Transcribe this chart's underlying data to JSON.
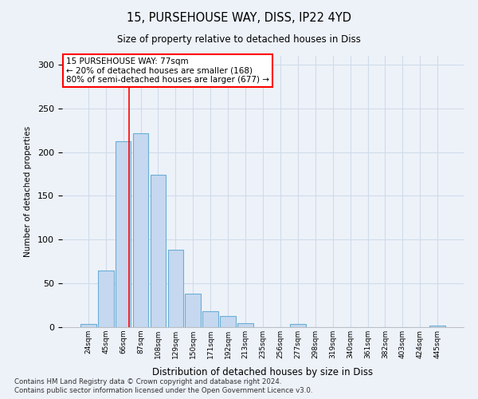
{
  "title1": "15, PURSEHOUSE WAY, DISS, IP22 4YD",
  "title2": "Size of property relative to detached houses in Diss",
  "xlabel": "Distribution of detached houses by size in Diss",
  "ylabel": "Number of detached properties",
  "categories": [
    "24sqm",
    "45sqm",
    "66sqm",
    "87sqm",
    "108sqm",
    "129sqm",
    "150sqm",
    "171sqm",
    "192sqm",
    "213sqm",
    "235sqm",
    "256sqm",
    "277sqm",
    "298sqm",
    "319sqm",
    "340sqm",
    "361sqm",
    "382sqm",
    "403sqm",
    "424sqm",
    "445sqm"
  ],
  "values": [
    4,
    65,
    212,
    222,
    174,
    88,
    38,
    18,
    13,
    5,
    0,
    0,
    4,
    0,
    0,
    0,
    0,
    0,
    0,
    0,
    2
  ],
  "bar_color": "#c5d8ef",
  "bar_edge_color": "#6aaed6",
  "grid_color": "#d0dcea",
  "vline_x": 2.35,
  "vline_color": "red",
  "annotation_text": "15 PURSEHOUSE WAY: 77sqm\n← 20% of detached houses are smaller (168)\n80% of semi-detached houses are larger (677) →",
  "annotation_box_color": "white",
  "annotation_box_edge": "red",
  "footnote1": "Contains HM Land Registry data © Crown copyright and database right 2024.",
  "footnote2": "Contains public sector information licensed under the Open Government Licence v3.0.",
  "ylim": [
    0,
    310
  ],
  "yticks": [
    0,
    50,
    100,
    150,
    200,
    250,
    300
  ],
  "background_color": "#edf2f9"
}
